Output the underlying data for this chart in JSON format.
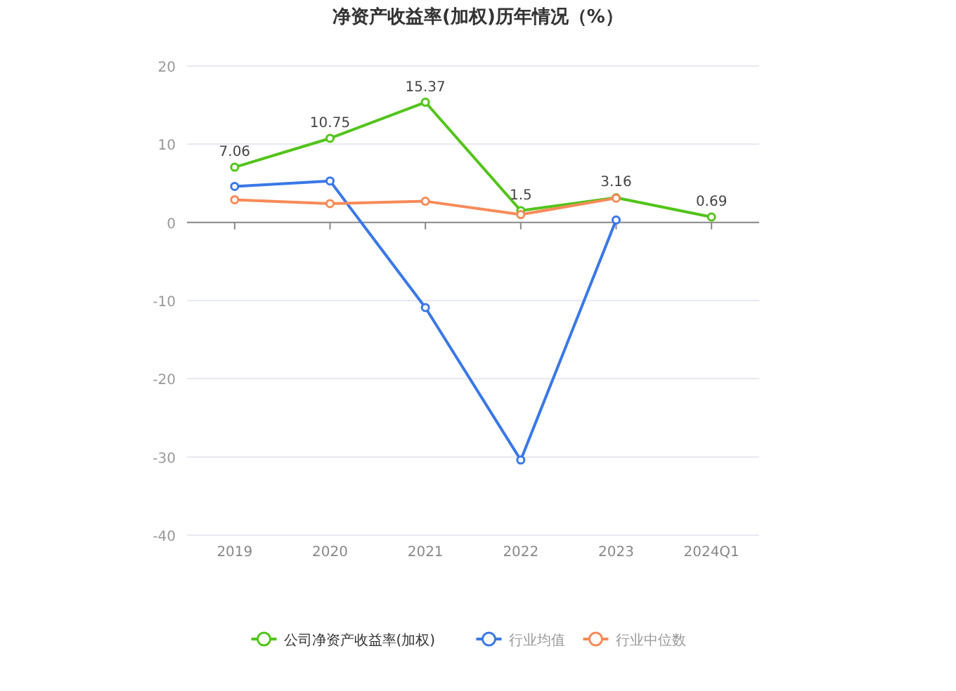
{
  "chart_data": {
    "type": "line",
    "title": "净资产收益率(加权)历年情况（%）",
    "categories": [
      "2019",
      "2020",
      "2021",
      "2022",
      "2023",
      "2024Q1"
    ],
    "series": [
      {
        "name": "公司净资产收益率(加权)",
        "color": "#52c41a",
        "values": [
          7.06,
          10.75,
          15.37,
          1.5,
          3.16,
          0.69
        ],
        "value_labels": [
          "7.06",
          "10.75",
          "15.37",
          "1.5",
          "3.16",
          "0.69"
        ]
      },
      {
        "name": "行业均值",
        "color": "#3a78e6",
        "values": [
          4.6,
          5.3,
          -10.9,
          -30.4,
          0.3,
          null
        ]
      },
      {
        "name": "行业中位数",
        "color": "#f88a58",
        "values": [
          2.9,
          2.4,
          2.7,
          1.0,
          3.1,
          null
        ]
      }
    ],
    "ylim": [
      -40,
      20
    ],
    "yticks": [
      -40,
      -30,
      -20,
      -10,
      0,
      10,
      20
    ],
    "grid": "y",
    "legend": "bottom",
    "marker": "circle"
  }
}
